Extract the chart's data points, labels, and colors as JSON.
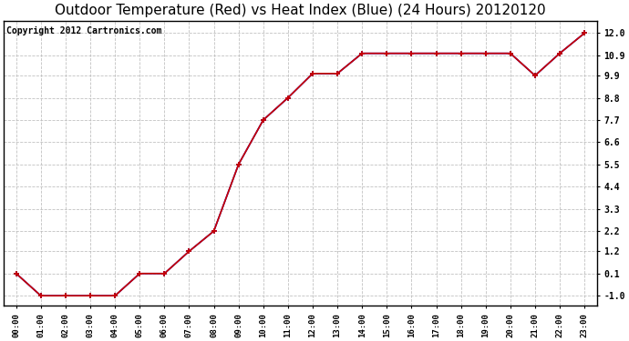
{
  "title": "Outdoor Temperature (Red) vs Heat Index (Blue) (24 Hours) 20120120",
  "copyright_text": "Copyright 2012 Cartronics.com",
  "x_labels": [
    "00:00",
    "01:00",
    "02:00",
    "03:00",
    "04:00",
    "05:00",
    "06:00",
    "07:00",
    "08:00",
    "09:00",
    "10:00",
    "11:00",
    "12:00",
    "13:00",
    "14:00",
    "15:00",
    "16:00",
    "17:00",
    "18:00",
    "19:00",
    "20:00",
    "21:00",
    "22:00",
    "23:00"
  ],
  "temp_values": [
    0.1,
    -1.0,
    -1.0,
    -1.0,
    -1.0,
    0.1,
    0.1,
    1.2,
    2.2,
    5.5,
    7.7,
    8.8,
    10.0,
    10.0,
    11.0,
    11.0,
    11.0,
    11.0,
    11.0,
    11.0,
    11.0,
    9.9,
    11.0,
    12.0
  ],
  "heat_values": [
    0.1,
    -1.0,
    -1.0,
    -1.0,
    -1.0,
    0.1,
    0.1,
    1.2,
    2.2,
    5.5,
    7.7,
    8.8,
    10.0,
    10.0,
    11.0,
    11.0,
    11.0,
    11.0,
    11.0,
    11.0,
    11.0,
    9.9,
    11.0,
    12.0
  ],
  "temp_color": "#cc0000",
  "heat_color": "#0000cc",
  "ylim": [
    -1.5,
    12.6
  ],
  "yticks": [
    -1.0,
    0.1,
    1.2,
    2.2,
    3.3,
    4.4,
    5.5,
    6.6,
    7.7,
    8.8,
    9.9,
    10.9,
    12.0
  ],
  "ytick_labels": [
    "-1.0",
    "0.1",
    "1.2",
    "2.2",
    "3.3",
    "4.4",
    "5.5",
    "6.6",
    "7.7",
    "8.8",
    "9.9",
    "10.9",
    "12.0"
  ],
  "background_color": "#ffffff",
  "grid_color": "#bbbbbb",
  "title_fontsize": 11,
  "copyright_fontsize": 7,
  "marker": "+",
  "marker_size": 5,
  "marker_edge_width": 1.2,
  "line_width": 1.2
}
